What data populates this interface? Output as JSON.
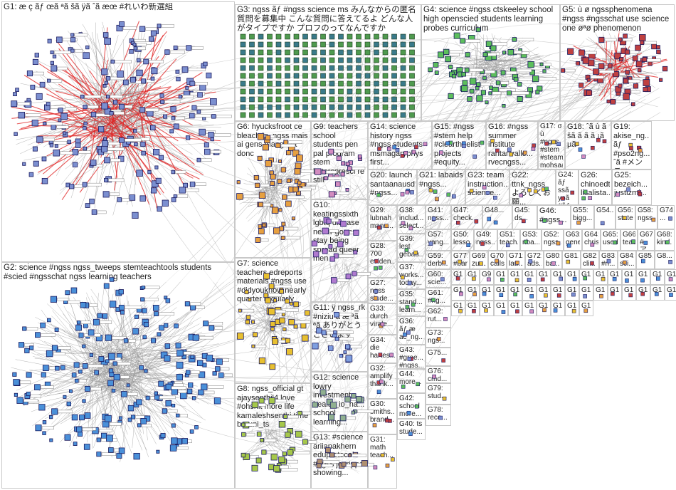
{
  "groups": [
    {
      "id": "G1",
      "label": "G1: æ ç ãƒ œã ªã šã ÿã ˆã æœ #れいわ新選組",
      "color": "#cc3333"
    },
    {
      "id": "G2",
      "label": "G2: science #ngss ngss_tweeps stemteachtools students #scied #ngsschat ngss learning teachers",
      "color": "#3377cc"
    },
    {
      "id": "G3",
      "label": "G3: ngss ãƒ #ngss science ms みんなからの匿名質問を募集中 こんな質問に答えてるよ どんな人がタイプですか プロフのってなんですか",
      "color": "#448844"
    },
    {
      "id": "G4",
      "label": "G4: science #ngss ctskeeley school high openscied students learning probes curriculum",
      "color": "#33aa33"
    },
    {
      "id": "G5",
      "label": "G5: ù ø ngssphenomena #ngss #ngsschat use science one øªø phenomenon",
      "color": "#aa2222"
    },
    {
      "id": "G6",
      "label": "G6: hyucksfroot ce bleach jp_ngss mais ai gens manga gt donc",
      "color": "#e08a1e"
    },
    {
      "id": "G7",
      "label": "G7: science teachers edreports materials #ngss use #didyouknow nearly quarter regularly",
      "color": "#ddaa00"
    },
    {
      "id": "G8",
      "label": "G8: ngss_official gt ajaysenthil4 love #ohshit more life kamaleshsenthi time baruni_ts",
      "color": "#99bb33"
    },
    {
      "id": "G9",
      "label": "G9: teachers school students pen pal program stem letterspresci re still",
      "color": "#cc66aa"
    },
    {
      "id": "G10",
      "label": "G10: keatingssixth lgbtq disease never gonna stay being spread queer men",
      "color": "#aa66cc"
    },
    {
      "id": "G11",
      "label": "G11: ÿ ngss_rk #niziu ã æ ªã ªã ありがとうございます",
      "color": "#6688cc"
    },
    {
      "id": "G12",
      "label": "G12: science lowry investment health_io_ha... school learning...",
      "color": "#88aa88"
    },
    {
      "id": "G13",
      "label": "G13: #science ariianakhern eduprotocols #ngss jcorippo showing...",
      "color": "#aa8866"
    },
    {
      "id": "G14",
      "label": "G14: science history ngss #ngss students msmagaryphys first...",
      "color": "#999999"
    },
    {
      "id": "G15",
      "label": "G15: #ngss #stem help #cleartheelist projects #equity...",
      "color": "#999999"
    },
    {
      "id": "G16",
      "label": "G16: #ngss summer institute raritanvalle... rvecngss...",
      "color": "#999999"
    },
    {
      "id": "G17",
      "label": "G17: σ ù #ngss #stem #steam mohsaad2...",
      "color": "#999999"
    },
    {
      "id": "G18",
      "label": "G18: ˆã ù ã šã ã ã ã ¡ã µã",
      "color": "#999999"
    },
    {
      "id": "G19",
      "label": "G19: akise_ng... ãƒ #pso2ng... ˆã #メンテ...",
      "color": "#999999"
    },
    {
      "id": "G20",
      "label": "G20: launch santaanausd #ngss...",
      "color": "#999999"
    },
    {
      "id": "G21",
      "label": "G21: labaids #ngss...",
      "color": "#999999"
    },
    {
      "id": "G22",
      "label": "G22: ttnk_ngss よろしくお願...",
      "color": "#999999"
    },
    {
      "id": "G23",
      "label": "G23: team instruction... science...",
      "color": "#999999"
    },
    {
      "id": "G24",
      "label": "G24: ãƒ ssã yoã #ãƒ œã ªã",
      "color": "#999999"
    },
    {
      "id": "G25",
      "label": "G25: bezeich... justizmi...",
      "color": "#999999"
    },
    {
      "id": "G26",
      "label": "G26: chinoedt... lisalista...",
      "color": "#999999"
    },
    {
      "id": "G27",
      "label": "G27: ngss stude...",
      "color": "#999999"
    },
    {
      "id": "G28",
      "label": "G28: 700 eviden...",
      "color": "#999999"
    },
    {
      "id": "G29",
      "label": "G29: lubnah mans...",
      "color": "#999999"
    },
    {
      "id": "G30",
      "label": "G30: smiths... brand...",
      "color": "#999999"
    },
    {
      "id": "G31",
      "label": "G31: math teach...",
      "color": "#999999"
    },
    {
      "id": "G32",
      "label": "G32: amplify thank...",
      "color": "#999999"
    },
    {
      "id": "G33",
      "label": "G33: durch virale...",
      "color": "#999999"
    },
    {
      "id": "G34",
      "label": "G34: die hartes...",
      "color": "#999999"
    },
    {
      "id": "G35",
      "label": "G35: stand... learn...",
      "color": "#999999"
    },
    {
      "id": "G36",
      "label": "G36: ãƒ æ ac_ng...",
      "color": "#999999"
    },
    {
      "id": "G37",
      "label": "G37: works... today...",
      "color": "#999999"
    },
    {
      "id": "G38",
      "label": "G38: includ... select...",
      "color": "#999999"
    },
    {
      "id": "G39",
      "label": "G39: lest gebau...",
      "color": "#999999"
    },
    {
      "id": "G40",
      "label": "G40: ts stude...",
      "color": "#999999"
    },
    {
      "id": "G41",
      "label": "G41: ngss...",
      "color": "#999999"
    },
    {
      "id": "G42",
      "label": "G42: school more...",
      "color": "#999999"
    },
    {
      "id": "G43",
      "label": "G43: #gree... #ngss...",
      "color": "#999999"
    },
    {
      "id": "G44",
      "label": "G44: more...",
      "color": "#999999"
    },
    {
      "id": "G45",
      "label": "G45: ds...",
      "color": "#999999"
    },
    {
      "id": "G46",
      "label": "G46: #ngss...",
      "color": "#999999"
    },
    {
      "id": "G47",
      "label": "G47: check...",
      "color": "#999999"
    },
    {
      "id": "G48",
      "label": "G48...",
      "color": "#999999"
    },
    {
      "id": "G49",
      "label": "G49: ngss...",
      "color": "#999999"
    },
    {
      "id": "G50",
      "label": "G50: lesso...",
      "color": "#999999"
    },
    {
      "id": "G51",
      "label": "G51: teach...",
      "color": "#999999"
    },
    {
      "id": "G52",
      "label": "G52: ngss...",
      "color": "#999999"
    },
    {
      "id": "G53",
      "label": "G53: nba...",
      "color": "#999999"
    },
    {
      "id": "G54",
      "label": "G54...",
      "color": "#999999"
    },
    {
      "id": "G55",
      "label": "G55: bigg...",
      "color": "#999999"
    },
    {
      "id": "G56",
      "label": "G56: state...",
      "color": "#999999"
    },
    {
      "id": "G57",
      "label": "G57: yang...",
      "color": "#999999"
    },
    {
      "id": "G58",
      "label": "G58: ngss...",
      "color": "#999999"
    },
    {
      "id": "G59",
      "label": "G59: derb...",
      "color": "#999999"
    },
    {
      "id": "G60",
      "label": "G60: scie...",
      "color": "#999999"
    },
    {
      "id": "G61",
      "label": "G61: #ng...",
      "color": "#999999"
    },
    {
      "id": "G62",
      "label": "G62: rut...",
      "color": "#999999"
    },
    {
      "id": "G63",
      "label": "G63: gene...",
      "color": "#999999"
    },
    {
      "id": "G64",
      "label": "G64: chris...",
      "color": "#999999"
    },
    {
      "id": "G65",
      "label": "G65: used...",
      "color": "#999999"
    },
    {
      "id": "G66",
      "label": "G66: teac...",
      "color": "#999999"
    },
    {
      "id": "G67",
      "label": "G67: #ア...",
      "color": "#999999"
    },
    {
      "id": "G68",
      "label": "G68: kind...",
      "color": "#999999"
    },
    {
      "id": "G69",
      "label": "G69: zun...",
      "color": "#999999"
    },
    {
      "id": "G70",
      "label": "G70: calls...",
      "color": "#999999"
    },
    {
      "id": "G71",
      "label": "G71: lau...",
      "color": "#999999"
    },
    {
      "id": "G72",
      "label": "G72: ads...",
      "color": "#999999"
    },
    {
      "id": "G73",
      "label": "G73: ngs...",
      "color": "#999999"
    },
    {
      "id": "G74",
      "label": "G74: ...",
      "color": "#999999"
    },
    {
      "id": "G75",
      "label": "G75...",
      "color": "#999999"
    },
    {
      "id": "G76",
      "label": "G76: cmd...",
      "color": "#999999"
    },
    {
      "id": "G77",
      "label": "G77: #bar...",
      "color": "#999999"
    },
    {
      "id": "G78",
      "label": "G78: reco...",
      "color": "#999999"
    },
    {
      "id": "G79",
      "label": "G79: stud...",
      "color": "#999999"
    },
    {
      "id": "G80",
      "label": "G80: bar...",
      "color": "#999999"
    },
    {
      "id": "G81",
      "label": "G81...",
      "color": "#999999"
    },
    {
      "id": "G82",
      "label": "G82: cli...",
      "color": "#999999"
    },
    {
      "id": "G83",
      "label": "G83: #n...",
      "color": "#999999"
    },
    {
      "id": "G84",
      "label": "G84: sci...",
      "color": "#999999"
    },
    {
      "id": "G85",
      "label": "G85...",
      "color": "#999999"
    },
    {
      "id": "G86",
      "label": "G8...",
      "color": "#999999"
    },
    {
      "id": "G87",
      "label": "G1...",
      "color": "#999999"
    },
    {
      "id": "G88",
      "label": "G1...",
      "color": "#999999"
    },
    {
      "id": "G89",
      "label": "G9...",
      "color": "#999999"
    },
    {
      "id": "G90",
      "label": "G1...",
      "color": "#999999"
    },
    {
      "id": "G91",
      "label": "G1...",
      "color": "#999999"
    },
    {
      "id": "G92",
      "label": "G1...",
      "color": "#999999"
    },
    {
      "id": "G93",
      "label": "G1...",
      "color": "#999999"
    },
    {
      "id": "G94",
      "label": "G1...",
      "color": "#999999"
    },
    {
      "id": "G95",
      "label": "G1...",
      "color": "#999999"
    },
    {
      "id": "G96",
      "label": "G1...",
      "color": "#999999"
    },
    {
      "id": "G97",
      "label": "G1...",
      "color": "#999999"
    },
    {
      "id": "G98",
      "label": "G1...",
      "color": "#999999"
    },
    {
      "id": "G99",
      "label": "G1...",
      "color": "#999999"
    },
    {
      "id": "G100",
      "label": "G1...",
      "color": "#999999"
    },
    {
      "id": "G101",
      "label": "G1...",
      "color": "#999999"
    },
    {
      "id": "G102",
      "label": "G1...",
      "color": "#999999"
    },
    {
      "id": "G103",
      "label": "G1...",
      "color": "#999999"
    },
    {
      "id": "G104",
      "label": "G1...",
      "color": "#999999"
    },
    {
      "id": "G105",
      "label": "G1...",
      "color": "#999999"
    },
    {
      "id": "G106",
      "label": "G1...",
      "color": "#999999"
    },
    {
      "id": "G107",
      "label": "G1...",
      "color": "#999999"
    },
    {
      "id": "G108",
      "label": "G1...",
      "color": "#999999"
    },
    {
      "id": "G109",
      "label": "G1...",
      "color": "#999999"
    },
    {
      "id": "G110",
      "label": "G1...",
      "color": "#999999"
    },
    {
      "id": "G111",
      "label": "G1...",
      "color": "#999999"
    },
    {
      "id": "G112",
      "label": "G1...",
      "color": "#999999"
    },
    {
      "id": "G113",
      "label": "G1...",
      "color": "#999999"
    },
    {
      "id": "G114",
      "label": "G1...",
      "color": "#999999"
    },
    {
      "id": "G115",
      "label": "G1...",
      "color": "#999999"
    },
    {
      "id": "G116",
      "label": "G1...",
      "color": "#999999"
    },
    {
      "id": "G117",
      "label": "G1...",
      "color": "#999999"
    },
    {
      "id": "G118",
      "label": "G1...",
      "color": "#999999"
    },
    {
      "id": "G119",
      "label": "G1...",
      "color": "#999999"
    },
    {
      "id": "G120",
      "label": "G1...",
      "color": "#999999"
    },
    {
      "id": "G121",
      "label": "G1...",
      "color": "#999999"
    },
    {
      "id": "G122",
      "label": "G1...",
      "color": "#999999"
    },
    {
      "id": "G123",
      "label": "G1...",
      "color": "#999999"
    },
    {
      "id": "G124",
      "label": "G1...",
      "color": "#999999"
    },
    {
      "id": "G125",
      "label": "G1...",
      "color": "#999999"
    },
    {
      "id": "G126",
      "label": "G1...",
      "color": "#999999"
    },
    {
      "id": "G127",
      "label": "G1...",
      "color": "#999999"
    },
    {
      "id": "G128",
      "label": "G1...",
      "color": "#999999"
    }
  ],
  "colors": {
    "edge": "#b8b8b8",
    "edge_red": "#e02020",
    "node_border": "#1a1a5e",
    "grid_border": "#c8c8c8"
  }
}
